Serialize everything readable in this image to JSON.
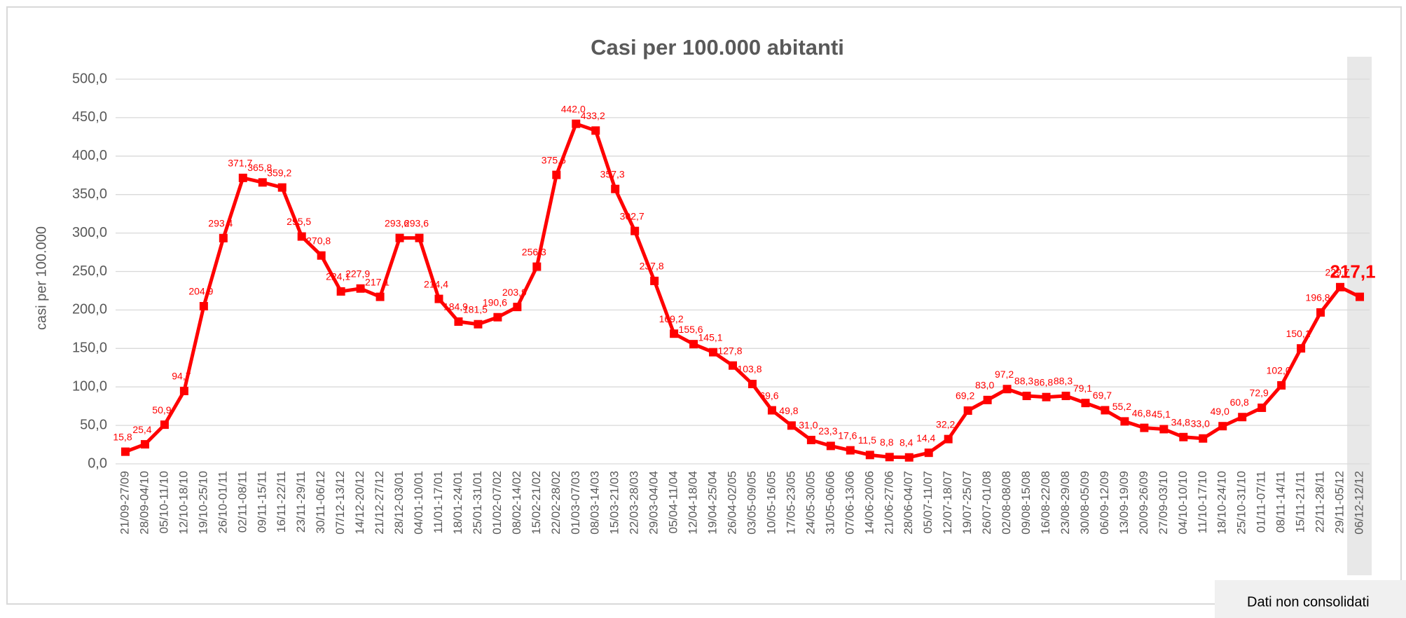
{
  "chart_data": {
    "type": "line",
    "title": "Casi per 100.000 abitanti",
    "y_label": "casi per 100.000",
    "note": "Dati non consolidati",
    "categories": [
      "21/09-27/09",
      "28/09-04/10",
      "05/10-11/10",
      "12/10-18/10",
      "19/10-25/10",
      "26/10-01/11",
      "02/11-08/11",
      "09/11-15/11",
      "16/11-22/11",
      "23/11-29/11",
      "30/11-06/12",
      "07/12-13/12",
      "14/12-20/12",
      "21/12-27/12",
      "28/12-03/01",
      "04/01-10/01",
      "11/01-17/01",
      "18/01-24/01",
      "25/01-31/01",
      "01/02-07/02",
      "08/02-14/02",
      "15/02-21/02",
      "22/02-28/02",
      "01/03-07/03",
      "08/03-14/03",
      "15/03-21/03",
      "22/03-28/03",
      "29/03-04/04",
      "05/04-11/04",
      "12/04-18/04",
      "19/04-25/04",
      "26/04-02/05",
      "03/05-09/05",
      "10/05-16/05",
      "17/05-23/05",
      "24/05-30/05",
      "31/05-06/06",
      "07/06-13/06",
      "14/06-20/06",
      "21/06-27/06",
      "28/06-04/07",
      "05/07-11/07",
      "12/07-18/07",
      "19/07-25/07",
      "26/07-01/08",
      "02/08-08/08",
      "09/08-15/08",
      "16/08-22/08",
      "23/08-29/08",
      "30/08-05/09",
      "06/09-12/09",
      "13/09-19/09",
      "20/09-26/09",
      "27/09-03/10",
      "04/10-10/10",
      "11/10-17/10",
      "18/10-24/10",
      "25/10-31/10",
      "01/11-07/11",
      "08/11-14/11",
      "15/11-21/11",
      "22/11-28/11",
      "29/11-05/12",
      "06/12-12/12"
    ],
    "series": [
      {
        "name": "casi per 100.000",
        "color": "#ff0000",
        "values": [
          15.8,
          25.4,
          50.9,
          94.7,
          204.9,
          293.4,
          371.7,
          365.8,
          359.2,
          295.5,
          270.8,
          224.1,
          227.9,
          217.1,
          293.6,
          293.6,
          214.4,
          184.9,
          181.5,
          190.6,
          203.9,
          256.3,
          375.6,
          442.0,
          433.2,
          357.3,
          302.7,
          237.8,
          169.2,
          155.6,
          145.1,
          127.8,
          103.8,
          69.6,
          49.8,
          31.0,
          23.3,
          17.6,
          11.5,
          8.8,
          8.4,
          14.4,
          32.2,
          69.2,
          83.0,
          97.2,
          88.3,
          86.8,
          88.3,
          79.1,
          69.7,
          55.2,
          46.8,
          45.1,
          34.8,
          33.0,
          49.0,
          60.8,
          72.9,
          102.0,
          150.1,
          196.8,
          229.7,
          217.1
        ],
        "value_labels": [
          "15,8",
          "25,4",
          "50,9",
          "94,7",
          "204,9",
          "293,4",
          "371,7",
          "365,8",
          "359,2",
          "295,5",
          "270,8",
          "224,1",
          "227,9",
          "217,1",
          "293,6",
          "293,6",
          "214,4",
          "184,9",
          "181,5",
          "190,6",
          "203,9",
          "256,3",
          "375,6",
          "442,0",
          "433,2",
          "357,3",
          "302,7",
          "237,8",
          "169,2",
          "155,6",
          "145,1",
          "127,8",
          "103,8",
          "69,6",
          "49,8",
          "31,0",
          "23,3",
          "17,6",
          "11,5",
          "8,8",
          "8,4",
          "14,4",
          "32,2",
          "69,2",
          "83,0",
          "97,2",
          "88,3",
          "86,8",
          "88,3",
          "79,1",
          "69,7",
          "55,2",
          "46,8",
          "45,1",
          "34,8",
          "33,0",
          "49,0",
          "60,8",
          "72,9",
          "102,0",
          "150,1",
          "196,8",
          "229,7",
          "217,1"
        ]
      }
    ],
    "ylim": [
      0,
      500
    ],
    "yticks": [
      {
        "value": 0,
        "label": "0,0"
      },
      {
        "value": 50,
        "label": "50,0"
      },
      {
        "value": 100,
        "label": "100,0"
      },
      {
        "value": 150,
        "label": "150,0"
      },
      {
        "value": 200,
        "label": "200,0"
      },
      {
        "value": 250,
        "label": "250,0"
      },
      {
        "value": 300,
        "label": "300,0"
      },
      {
        "value": 350,
        "label": "350,0"
      },
      {
        "value": 400,
        "label": "400,0"
      },
      {
        "value": 450,
        "label": "450,0"
      },
      {
        "value": 500,
        "label": "500,0"
      }
    ],
    "grid": true
  }
}
